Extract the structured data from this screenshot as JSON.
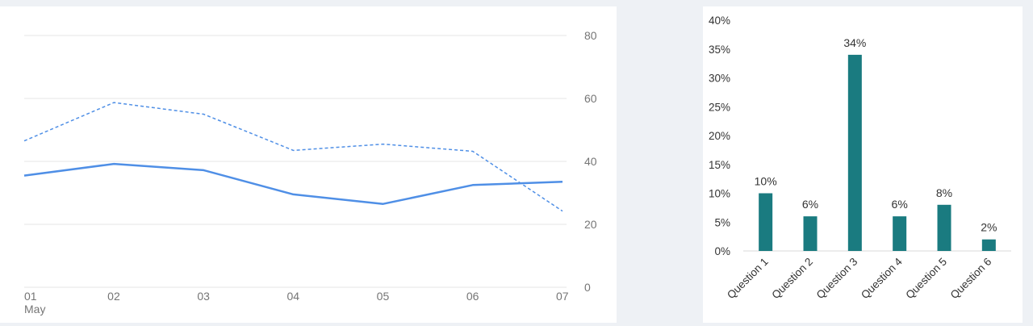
{
  "chart_data": [
    {
      "type": "line",
      "x": [
        "01",
        "02",
        "03",
        "04",
        "05",
        "06",
        "07"
      ],
      "x_sublabel": "May",
      "series": [
        {
          "style": "solid",
          "values": [
            35.5,
            39.2,
            37.2,
            29.5,
            26.5,
            32.5,
            33.5
          ]
        },
        {
          "style": "dashed",
          "values": [
            46.5,
            58.7,
            55.0,
            43.5,
            45.5,
            43.2,
            24.2
          ]
        }
      ],
      "ylim": [
        0,
        80
      ],
      "yticks": [
        "0",
        "20",
        "40",
        "60",
        "80"
      ],
      "y_axis_side": "right",
      "grid": true,
      "color": "#4f8fe6"
    },
    {
      "type": "bar",
      "categories": [
        "Question 1",
        "Question 2",
        "Question 3",
        "Question 4",
        "Question 5",
        "Question 6"
      ],
      "values": [
        10,
        6,
        34,
        6,
        8,
        2
      ],
      "data_labels": [
        "10%",
        "6%",
        "34%",
        "6%",
        "8%",
        "2%"
      ],
      "ylim": [
        0,
        40
      ],
      "yticks": [
        "0%",
        "5%",
        "10%",
        "15%",
        "20%",
        "25%",
        "30%",
        "35%",
        "40%"
      ],
      "grid": false,
      "color": "#1a7b80"
    }
  ]
}
